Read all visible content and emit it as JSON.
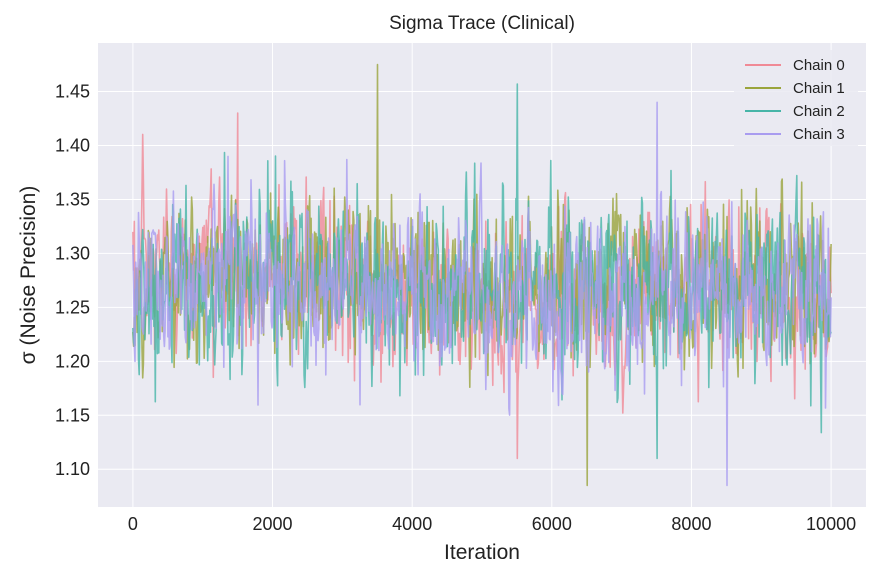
{
  "chart_data": {
    "type": "line",
    "title": "Sigma Trace (Clinical)",
    "xlabel": "Iteration",
    "ylabel": "σ (Noise Precision)",
    "xlim": [
      -500,
      10500
    ],
    "ylim": [
      1.065,
      1.495
    ],
    "xticks": [
      0,
      2000,
      4000,
      6000,
      8000,
      10000
    ],
    "yticks": [
      1.1,
      1.15,
      1.2,
      1.25,
      1.3,
      1.35,
      1.4,
      1.45
    ],
    "xtick_labels": [
      "0",
      "2000",
      "4000",
      "6000",
      "8000",
      "10000"
    ],
    "ytick_labels": [
      "1.10",
      "1.15",
      "1.20",
      "1.25",
      "1.30",
      "1.35",
      "1.40",
      "1.45"
    ],
    "grid": true,
    "legend_position": "top-right",
    "background_color": "#eaeaf2",
    "grid_color": "#ffffff",
    "n_points": 1000,
    "series": [
      {
        "name": "Chain 0",
        "color": "#f08a96",
        "x": [
          0,
          1000,
          2000,
          3000,
          4000,
          5000,
          6000,
          7000,
          8000,
          9000,
          10000
        ],
        "values": [
          1.27,
          1.29,
          1.28,
          1.27,
          1.26,
          1.26,
          1.25,
          1.26,
          1.27,
          1.26,
          1.25
        ],
        "min": 1.11,
        "max": 1.43
      },
      {
        "name": "Chain 1",
        "color": "#9aa43c",
        "x": [
          0,
          1000,
          2000,
          3000,
          4000,
          5000,
          6000,
          7000,
          8000,
          9000,
          10000
        ],
        "values": [
          1.26,
          1.27,
          1.28,
          1.28,
          1.27,
          1.27,
          1.27,
          1.28,
          1.28,
          1.28,
          1.26
        ],
        "min": 1.085,
        "max": 1.475
      },
      {
        "name": "Chain 2",
        "color": "#47b5a8",
        "x": [
          0,
          1000,
          2000,
          3000,
          4000,
          5000,
          6000,
          7000,
          8000,
          9000,
          10000
        ],
        "values": [
          1.26,
          1.27,
          1.27,
          1.27,
          1.26,
          1.27,
          1.27,
          1.27,
          1.27,
          1.27,
          1.25
        ],
        "min": 1.11,
        "max": 1.457
      },
      {
        "name": "Chain 3",
        "color": "#a99cf0",
        "x": [
          0,
          1000,
          2000,
          3000,
          4000,
          5000,
          6000,
          7000,
          8000,
          9000,
          10000
        ],
        "values": [
          1.27,
          1.29,
          1.28,
          1.27,
          1.27,
          1.26,
          1.25,
          1.26,
          1.27,
          1.26,
          1.27
        ],
        "min": 1.085,
        "max": 1.44
      }
    ]
  }
}
